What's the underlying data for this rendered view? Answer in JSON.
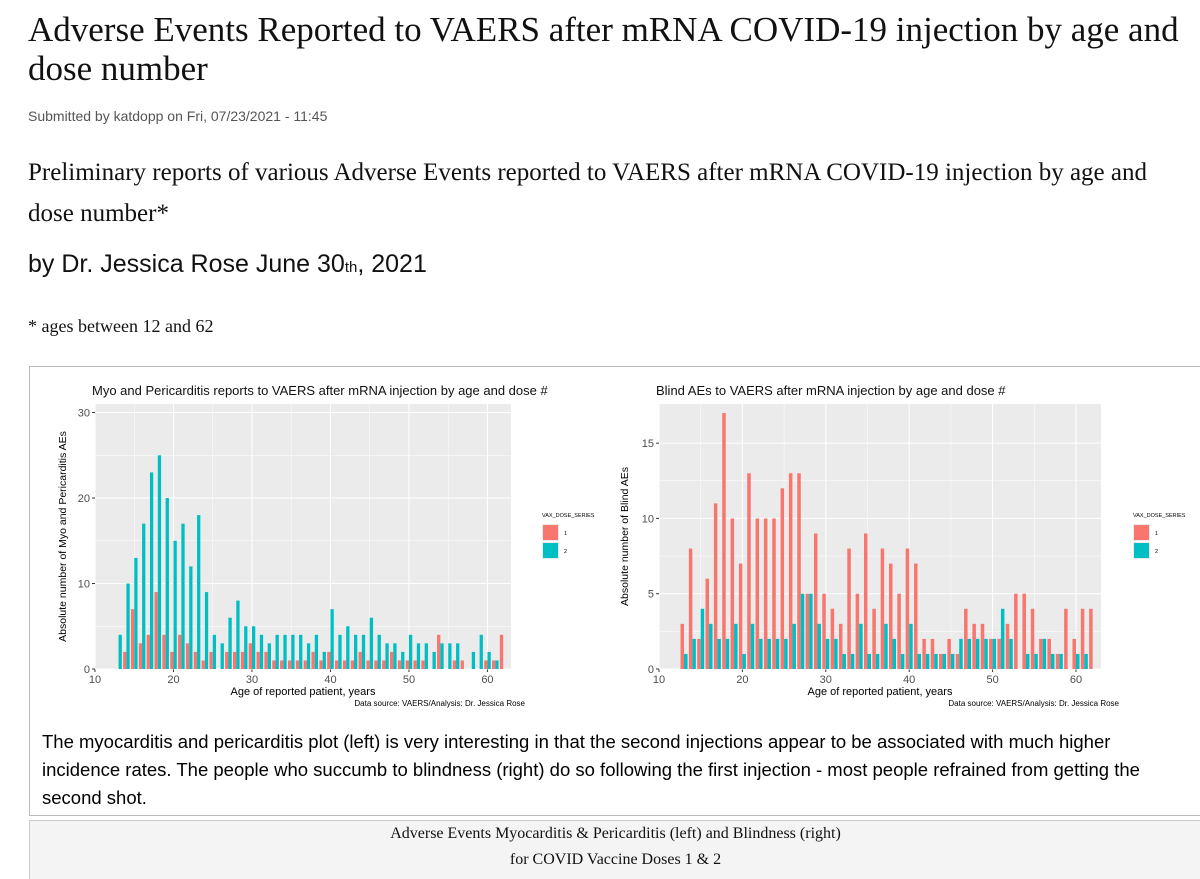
{
  "page": {
    "title": "Adverse Events Reported to VAERS after mRNA COVID-19 injection by age and dose number",
    "submitted": "Submitted by katdopp on Fri, 07/23/2021 - 11:45",
    "subtitle": "Preliminary reports of various Adverse Events reported to VAERS after mRNA COVID-19 injection by age and dose number*",
    "byline_main": "by Dr. Jessica Rose June 30",
    "byline_sup": "th",
    "byline_end": ", 2021",
    "note": "* ages between 12 and 62",
    "figure_text": "The myocarditis and pericarditis plot (left) is very interesting in that the second injections appear to be associated with much higher incidence rates. The people who succumb to blindness (right) do so following the first injection - most people refrained from getting the second shot.",
    "caption_line1": "Adverse Events Myocarditis & Pericarditis (left) and Blindness (right)",
    "caption_line2": "for COVID Vaccine Doses 1 & 2"
  },
  "colors": {
    "dose1": "#f8766d",
    "dose2": "#00bfc4",
    "panel": "#ebebeb",
    "grid": "#ffffff"
  },
  "chart_data": [
    {
      "type": "bar",
      "title": "Myo and Pericarditis reports to VAERS after mRNA injection by age and dose #",
      "xlabel": "Age of reported patient, years",
      "ylabel": "Absolute number of Myo and Pericarditis AEs",
      "source": "Data source: VAERS/Analysis: Dr. Jessica Rose",
      "legend_title": "VAX_DOSE_SERIES",
      "legend_position": "right",
      "xlim": [
        10,
        63
      ],
      "ylim": [
        0,
        31
      ],
      "xticks": [
        10,
        20,
        30,
        40,
        50,
        60
      ],
      "yticks": [
        0,
        10,
        20,
        30
      ],
      "grid": true,
      "x": [
        13,
        14,
        15,
        16,
        17,
        18,
        19,
        20,
        21,
        22,
        23,
        24,
        25,
        26,
        27,
        28,
        29,
        30,
        31,
        32,
        33,
        34,
        35,
        36,
        37,
        38,
        39,
        40,
        41,
        42,
        43,
        44,
        45,
        46,
        47,
        48,
        49,
        50,
        51,
        52,
        53,
        54,
        55,
        56,
        57,
        58,
        59,
        60,
        61,
        62
      ],
      "series": [
        {
          "name": "1",
          "values": [
            0,
            2,
            7,
            3,
            4,
            9,
            4,
            2,
            4,
            3,
            2,
            1,
            2,
            0,
            2,
            2,
            2,
            3,
            2,
            2,
            1,
            1,
            1,
            1,
            1,
            2,
            1,
            2,
            1,
            1,
            1,
            2,
            1,
            1,
            1,
            2,
            1,
            1,
            1,
            1,
            0,
            4,
            0,
            1,
            1,
            0,
            0,
            1,
            1,
            4
          ]
        },
        {
          "name": "2",
          "values": [
            4,
            10,
            13,
            17,
            23,
            25,
            20,
            15,
            17,
            12,
            18,
            9,
            4,
            3,
            6,
            8,
            5,
            5,
            4,
            3,
            4,
            4,
            4,
            4,
            3,
            4,
            2,
            7,
            4,
            5,
            4,
            4,
            6,
            4,
            3,
            3,
            2,
            4,
            3,
            3,
            2,
            3,
            3,
            3,
            0,
            2,
            4,
            2,
            1,
            0
          ]
        }
      ]
    },
    {
      "type": "bar",
      "title": "Blind AEs to VAERS after mRNA injection by age and dose #",
      "xlabel": "Age of reported patient, years",
      "ylabel": "Absolute number of Blind AEs",
      "source": "Data source: VAERS/Analysis: Dr. Jessica Rose",
      "legend_title": "VAX_DOSE_SERIES",
      "legend_position": "right",
      "xlim": [
        10,
        63
      ],
      "ylim": [
        0,
        17.6
      ],
      "xticks": [
        10,
        20,
        30,
        40,
        50,
        60
      ],
      "yticks": [
        0,
        5,
        10,
        15
      ],
      "grid": true,
      "x": [
        13,
        14,
        15,
        16,
        17,
        18,
        19,
        20,
        21,
        22,
        23,
        24,
        25,
        26,
        27,
        28,
        29,
        30,
        31,
        32,
        33,
        34,
        35,
        36,
        37,
        38,
        39,
        40,
        41,
        42,
        43,
        44,
        45,
        46,
        47,
        48,
        49,
        50,
        51,
        52,
        53,
        54,
        55,
        56,
        57,
        58,
        59,
        60,
        61,
        62
      ],
      "series": [
        {
          "name": "1",
          "values": [
            3,
            8,
            2,
            6,
            11,
            17,
            10,
            7,
            13,
            10,
            10,
            10,
            12,
            13,
            13,
            5,
            9,
            5,
            4,
            3,
            8,
            5,
            9,
            4,
            8,
            7,
            5,
            8,
            7,
            2,
            2,
            1,
            2,
            1,
            4,
            3,
            3,
            2,
            2,
            3,
            5,
            5,
            4,
            2,
            2,
            1,
            4,
            2,
            4,
            4
          ]
        },
        {
          "name": "2",
          "values": [
            1,
            2,
            4,
            3,
            2,
            2,
            3,
            1,
            3,
            2,
            2,
            2,
            2,
            3,
            5,
            5,
            3,
            2,
            2,
            1,
            1,
            3,
            1,
            1,
            3,
            2,
            1,
            3,
            1,
            1,
            1,
            1,
            1,
            2,
            2,
            2,
            2,
            2,
            4,
            2,
            0,
            1,
            1,
            2,
            1,
            1,
            0,
            1,
            1,
            0
          ]
        }
      ]
    }
  ]
}
